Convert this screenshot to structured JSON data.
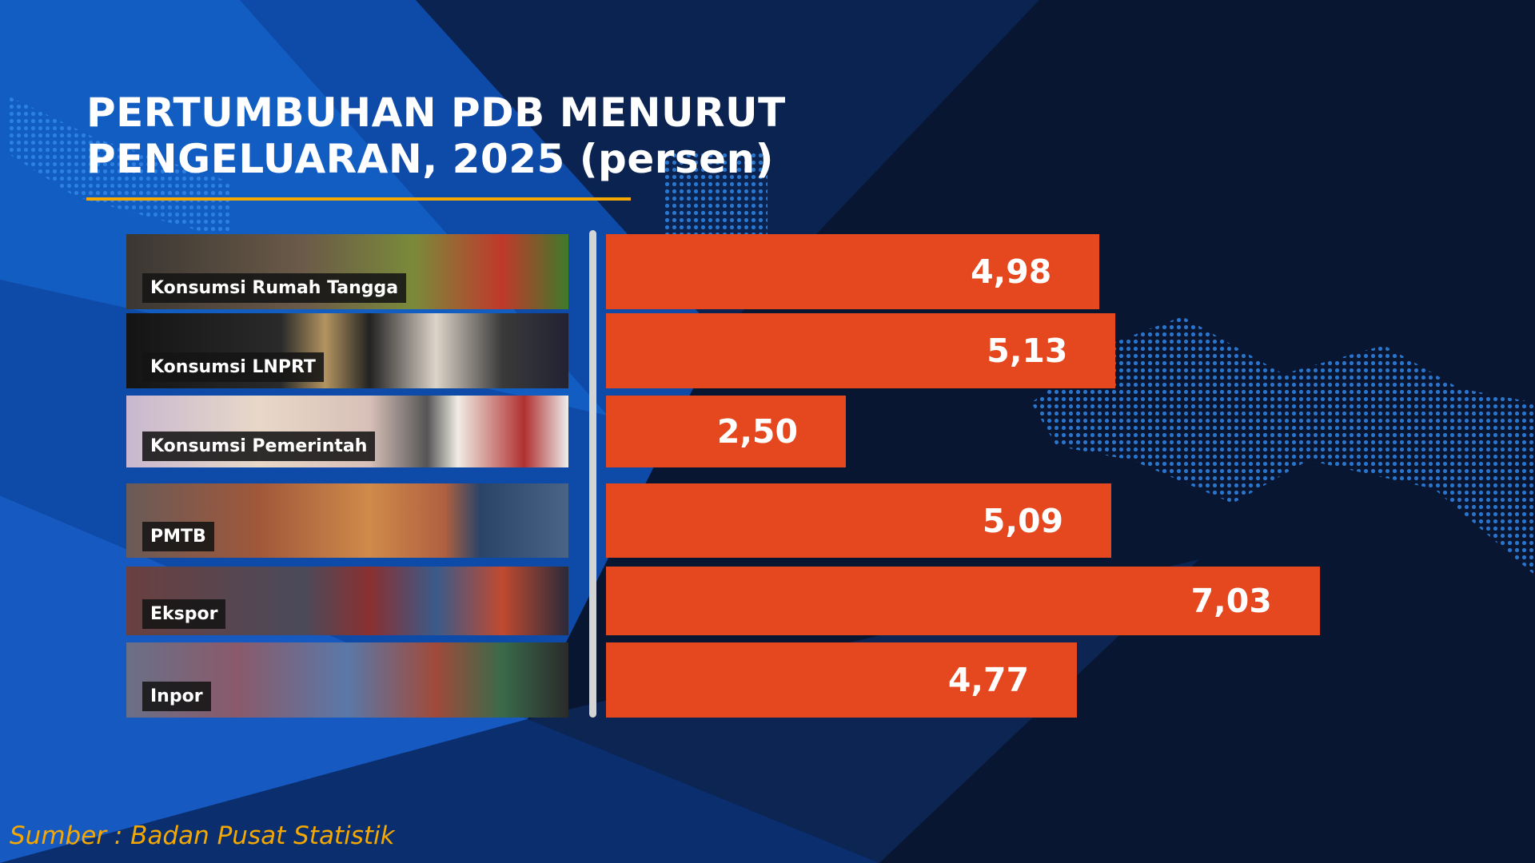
{
  "chart_data": {
    "type": "bar",
    "orientation": "horizontal",
    "title": "PERTUMBUHAN PDB MENURUT PENGELUARAN, 2025 (persen)",
    "title_lines": [
      "PERTUMBUHAN PDB MENURUT",
      "PENGELUARAN, 2025 (persen)"
    ],
    "categories": [
      "Konsumsi Rumah Tangga",
      "Konsumsi LNPRT",
      "Konsumsi Pemerintah",
      "PMTB",
      "Ekspor",
      "Inpor"
    ],
    "values": [
      4.98,
      5.13,
      2.5,
      5.09,
      7.03,
      4.77
    ],
    "value_labels": [
      "4,98",
      "5,13",
      "2,50",
      "5,09",
      "7,03",
      "4,77"
    ],
    "unit": "persen",
    "grid": false,
    "legend": "none",
    "bar_color": "#e5471e"
  },
  "source": "Sumber : Badan Pusat Statistik",
  "colors": {
    "accent": "#f5a800",
    "background": "#081631",
    "bar": "#e5471e"
  }
}
